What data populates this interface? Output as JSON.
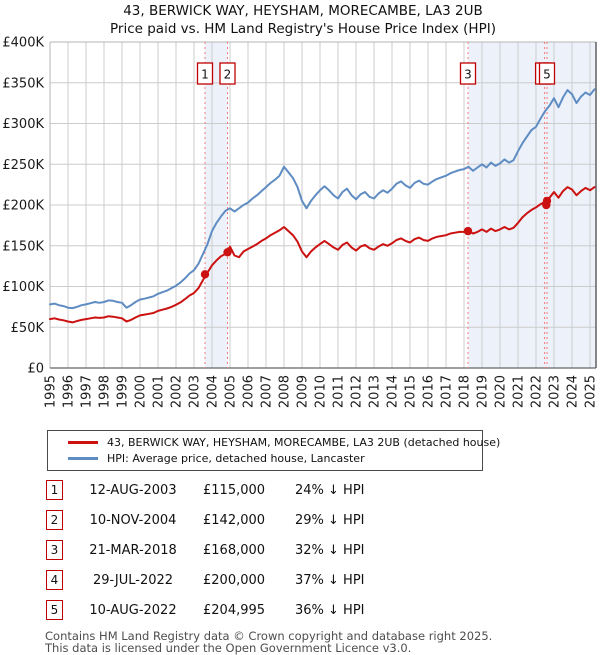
{
  "chart_data": {
    "type": "line",
    "title": "43, BERWICK WAY, HEYSHAM, MORECAMBE, LA3 2UB",
    "subtitle": "Price paid vs. HM Land Registry's House Price Index (HPI)",
    "x_range": [
      1995,
      2025.333
    ],
    "y_range_gbp": [
      0,
      400000
    ],
    "y_tick_labels": [
      "£0",
      "£50K",
      "£100K",
      "£150K",
      "£200K",
      "£250K",
      "£300K",
      "£350K",
      "£400K"
    ],
    "x_tick_years": [
      1995,
      1996,
      1997,
      1998,
      1999,
      2000,
      2001,
      2002,
      2003,
      2004,
      2005,
      2006,
      2007,
      2008,
      2009,
      2010,
      2011,
      2012,
      2013,
      2014,
      2015,
      2016,
      2017,
      2018,
      2019,
      2020,
      2021,
      2022,
      2023,
      2024,
      2025
    ],
    "grid": true,
    "grid_color": "#cccccc",
    "band_color": "#edf2fa",
    "dotted_line_color": "#f27a7a",
    "shaded_bands_years": [
      [
        2003.61,
        2004.86
      ],
      [
        2018.22,
        2025.333
      ]
    ],
    "x_start": 1995,
    "x_step": 0.25,
    "series": [
      {
        "name": "43, BERWICK WAY, HEYSHAM, MORECAMBE, LA3 2UB (detached house)",
        "color": "#cc1111",
        "values_gbp_thousands": [
          60,
          61,
          59.5,
          58.5,
          57,
          56,
          57.5,
          59,
          60,
          61,
          62,
          61.5,
          62,
          63.5,
          63,
          62,
          61,
          57,
          59,
          62,
          64.5,
          65.5,
          66.5,
          67.5,
          70,
          71.5,
          73,
          75,
          77.5,
          80.5,
          84.5,
          89,
          92,
          98,
          108,
          117,
          126,
          132,
          137,
          140,
          149,
          138,
          136,
          143,
          146,
          149,
          152,
          156,
          159,
          163,
          166,
          169,
          173,
          168,
          163,
          155,
          143,
          136,
          143,
          148,
          152,
          156,
          152,
          148,
          145,
          151,
          154,
          148,
          144,
          149,
          151,
          147,
          145,
          149,
          152,
          150,
          153,
          157,
          159,
          156,
          154,
          158,
          160,
          157,
          156,
          159,
          161,
          162,
          163,
          165,
          166,
          167,
          167,
          168,
          165,
          167,
          170,
          167,
          171,
          168,
          170,
          173,
          170,
          172,
          178,
          185,
          190,
          194,
          197,
          201,
          204,
          209,
          216,
          209,
          217,
          222,
          219,
          212,
          217,
          221,
          218,
          222
        ]
      },
      {
        "name": "HPI: Average price, detached house, Lancaster",
        "color": "#5f8dc3",
        "values_gbp_thousands": [
          78,
          79,
          77,
          76,
          74,
          73.5,
          75,
          77,
          78,
          79.5,
          81,
          80,
          81,
          83,
          82.5,
          81,
          80,
          74,
          77,
          81,
          84,
          85,
          86.5,
          88,
          91,
          93,
          95,
          98,
          101,
          105,
          110,
          116,
          120,
          128,
          140,
          152,
          168,
          178,
          186,
          193,
          196,
          192,
          196,
          200,
          203,
          208,
          212,
          217,
          222,
          227,
          231,
          236,
          247,
          240,
          233,
          222,
          205,
          196,
          205,
          212,
          218,
          223,
          218,
          212,
          208,
          216,
          220,
          212,
          207,
          213,
          216,
          210,
          208,
          214,
          218,
          215,
          220,
          226,
          229,
          224,
          221,
          227,
          230,
          226,
          225,
          229,
          232,
          234,
          236,
          239,
          241,
          243,
          244,
          247,
          242,
          246,
          250,
          246,
          252,
          248,
          251,
          256,
          252,
          255,
          266,
          276,
          284,
          292,
          296,
          306,
          315,
          322,
          331,
          320,
          332,
          341,
          336,
          325,
          333,
          338,
          335,
          342
        ]
      }
    ],
    "sales": [
      {
        "label": "1",
        "date": "12-AUG-2003",
        "year": 2003.61,
        "price_gbp": 115000,
        "price_label": "£115,000",
        "hpi_diff": "24% ↓ HPI"
      },
      {
        "label": "2",
        "date": "10-NOV-2004",
        "year": 2004.86,
        "price_gbp": 142000,
        "price_label": "£142,000",
        "hpi_diff": "29% ↓ HPI"
      },
      {
        "label": "3",
        "date": "21-MAR-2018",
        "year": 2018.22,
        "price_gbp": 168000,
        "price_label": "£168,000",
        "hpi_diff": "32% ↓ HPI"
      },
      {
        "label": "4",
        "date": "29-JUL-2022",
        "year": 2022.57,
        "price_gbp": 200000,
        "price_label": "£200,000",
        "hpi_diff": "37% ↓ HPI"
      },
      {
        "label": "5",
        "date": "10-AUG-2022",
        "year": 2022.61,
        "price_gbp": 204995,
        "price_label": "£204,995",
        "hpi_diff": "36% ↓ HPI"
      }
    ],
    "marker_box_color": "#c00000",
    "sale_dot_color": "#cc1111"
  },
  "footer": {
    "line1": "Contains HM Land Registry data © Crown copyright and database right 2025.",
    "line2": "This data is licensed under the Open Government Licence v3.0."
  }
}
